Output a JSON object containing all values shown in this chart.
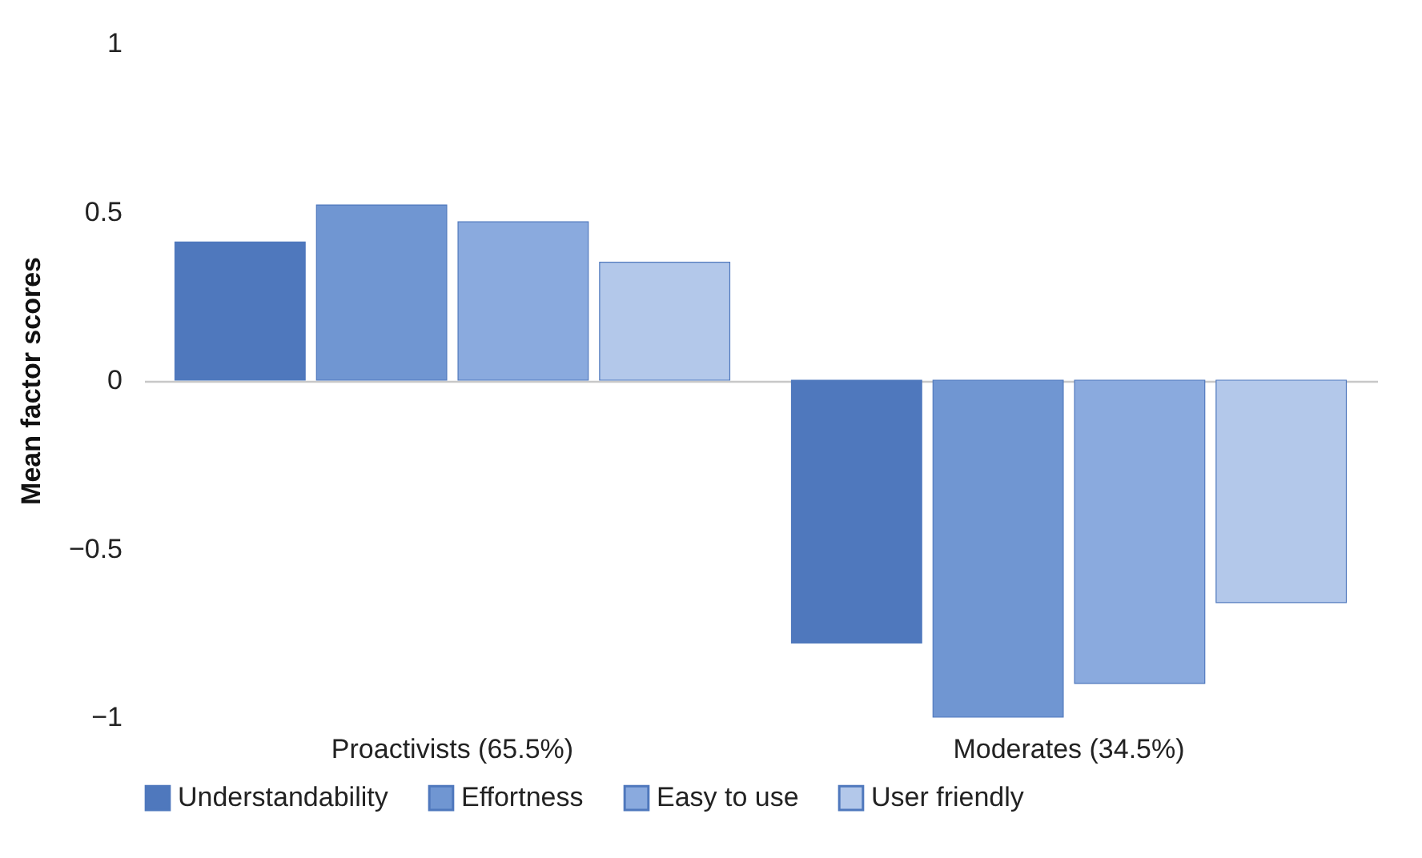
{
  "chart_data": {
    "type": "bar",
    "ylabel": "Mean factor scores",
    "categories": [
      "Proactivists (65.5%)",
      "Moderates (34.5%)"
    ],
    "series": [
      {
        "name": "Understandability",
        "color": "#4f78bd",
        "values": [
          0.41,
          -0.78
        ]
      },
      {
        "name": "Effortness",
        "color": "#7096d2",
        "values": [
          0.52,
          -1.0
        ]
      },
      {
        "name": "Easy to use",
        "color": "#8aaade",
        "values": [
          0.47,
          -0.9
        ]
      },
      {
        "name": "User friendly",
        "color": "#b3c8ea",
        "values": [
          0.35,
          -0.66
        ]
      }
    ],
    "ylim": [
      -1,
      1
    ],
    "yticks": [
      {
        "value": -1,
        "label": "−1"
      },
      {
        "value": -0.5,
        "label": "−0.5"
      },
      0,
      0.5,
      1
    ],
    "legend": "bottom"
  }
}
